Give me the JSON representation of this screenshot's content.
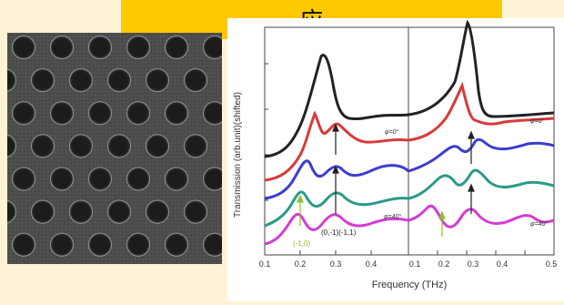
{
  "banner": {
    "title": "应"
  },
  "figure": {
    "ylabel": "Transmission (arb.unit)(shifted)",
    "xlabel": "Frequency (THz)",
    "left_panel": {
      "xticks": [
        "0.1",
        "0.2",
        "0.3",
        "0.4"
      ],
      "label_top": "φ=0°",
      "label_bottom": "φ=40°",
      "ann_mid": "(0,-1)(-1,1)",
      "ann_low": "(-1,0)"
    },
    "right_panel": {
      "xticks": [
        "0.1",
        "0.2",
        "0.3",
        "0.4",
        "0.5"
      ],
      "label_top": "φ=0°",
      "label_bottom": "φ=40°"
    },
    "colors": {
      "black": "#222222",
      "red": "#d93a3a",
      "blue": "#3c3cd0",
      "teal": "#2a9a88",
      "magenta": "#d43cd4",
      "arrow_green": "#8fbf2f"
    }
  }
}
